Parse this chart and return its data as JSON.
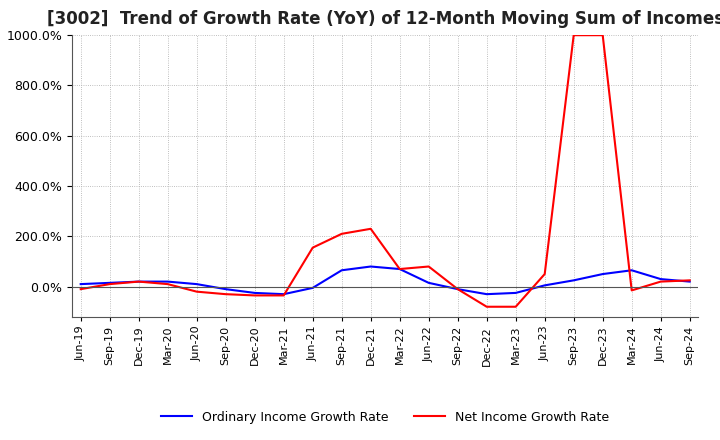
{
  "title": "[3002]  Trend of Growth Rate (YoY) of 12-Month Moving Sum of Incomes",
  "title_fontsize": 12,
  "ylim": [
    -120,
    1000
  ],
  "yticks": [
    0,
    200,
    400,
    600,
    800,
    1000
  ],
  "background_color": "#ffffff",
  "grid_color": "#aaaaaa",
  "legend_labels": [
    "Ordinary Income Growth Rate",
    "Net Income Growth Rate"
  ],
  "legend_colors": [
    "#0000ff",
    "#ff0000"
  ],
  "x_labels": [
    "Jun-19",
    "Sep-19",
    "Dec-19",
    "Mar-20",
    "Jun-20",
    "Sep-20",
    "Dec-20",
    "Mar-21",
    "Jun-21",
    "Sep-21",
    "Dec-21",
    "Mar-22",
    "Jun-22",
    "Sep-22",
    "Dec-22",
    "Mar-23",
    "Jun-23",
    "Sep-23",
    "Dec-23",
    "Mar-24",
    "Jun-24",
    "Sep-24"
  ],
  "ordinary_income_growth": [
    10,
    15,
    20,
    20,
    10,
    -10,
    -25,
    -30,
    -5,
    65,
    80,
    70,
    15,
    -10,
    -30,
    -25,
    5,
    25,
    50,
    65,
    30,
    20
  ],
  "net_income_growth": [
    -10,
    10,
    20,
    10,
    -20,
    -30,
    -35,
    -35,
    155,
    210,
    230,
    70,
    80,
    -10,
    -80,
    -80,
    50,
    1000,
    1000,
    -15,
    20,
    25
  ]
}
